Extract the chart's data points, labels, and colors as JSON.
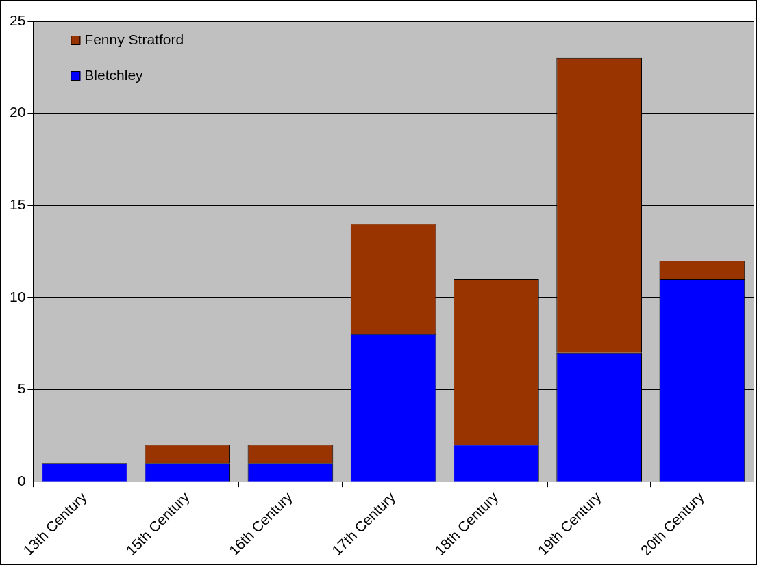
{
  "chart_data": {
    "type": "bar",
    "stacked": true,
    "categories": [
      "13th Century",
      "15th Century",
      "16th Century",
      "17th Century",
      "18th Century",
      "19th Century",
      "20th Century"
    ],
    "series": [
      {
        "name": "Bletchley",
        "color": "#0000ff",
        "values": [
          1,
          1,
          1,
          8,
          2,
          7,
          11
        ]
      },
      {
        "name": "Fenny Stratford",
        "color": "#993300",
        "values": [
          0,
          1,
          1,
          6,
          9,
          16,
          1
        ]
      }
    ],
    "ylim": [
      0,
      25
    ],
    "yticks": [
      0,
      5,
      10,
      15,
      20,
      25
    ],
    "grid": "y",
    "legend": "top left"
  }
}
